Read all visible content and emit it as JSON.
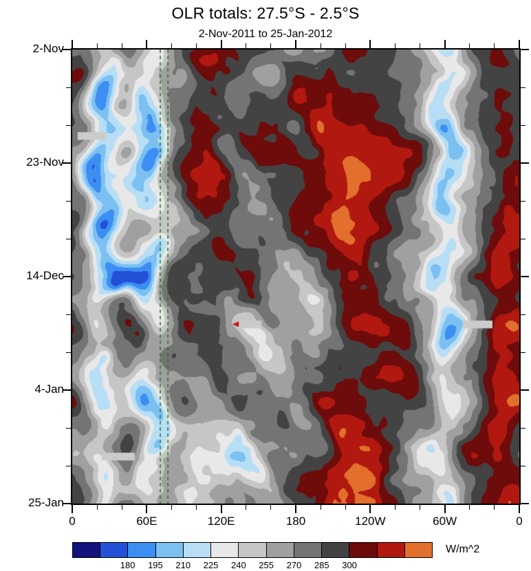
{
  "page": {
    "background": "#ffffff"
  },
  "chart_data": {
    "type": "heatmap",
    "title": "OLR totals: 27.5°S - 2.5°S",
    "subtitle": "2-Nov-2011 to 25-Jan-2012",
    "units_label": "W/m^2",
    "x_axis": {
      "tick_labels": [
        "0",
        "60E",
        "120E",
        "180",
        "120W",
        "60W",
        "0"
      ],
      "minor_per_major": 2
    },
    "y_axis": {
      "tick_labels": [
        "2-Nov",
        "23-Nov",
        "14-Dec",
        "4-Jan",
        "25-Jan"
      ],
      "minor_per_major": 2
    },
    "colorbar": {
      "colors": [
        "#14127c",
        "#2450d8",
        "#3c8ef2",
        "#7cc0f2",
        "#b8def6",
        "#e8e8e8",
        "#c6c6c6",
        "#a0a0a0",
        "#747474",
        "#434343",
        "#6e0b0b",
        "#b01810",
        "#e2702c"
      ],
      "levels": [
        165,
        180,
        195,
        210,
        225,
        240,
        255,
        270,
        285,
        300,
        315,
        330
      ],
      "tick_labels": [
        "180",
        "195",
        "210",
        "225",
        "240",
        "255",
        "270",
        "285",
        "300"
      ]
    },
    "reference_lines": [
      {
        "x_frac": 0.197,
        "color": "#177a17",
        "style": "dashed"
      },
      {
        "x_frac": 0.214,
        "color": "#177a17",
        "style": "dashed"
      }
    ],
    "missing_bars": [
      {
        "x": 0.012,
        "y": 0.182,
        "w": 0.065,
        "h": 0.017
      },
      {
        "x": 0.369,
        "y": 0.597,
        "w": 0.054,
        "h": 0.017
      },
      {
        "x": 0.874,
        "y": 0.597,
        "w": 0.066,
        "h": 0.017
      },
      {
        "x": 0.066,
        "y": 0.888,
        "w": 0.074,
        "h": 0.017
      }
    ],
    "red_marker": {
      "x": 0.3615,
      "y": 0.605,
      "color": "#cc1100"
    }
  }
}
